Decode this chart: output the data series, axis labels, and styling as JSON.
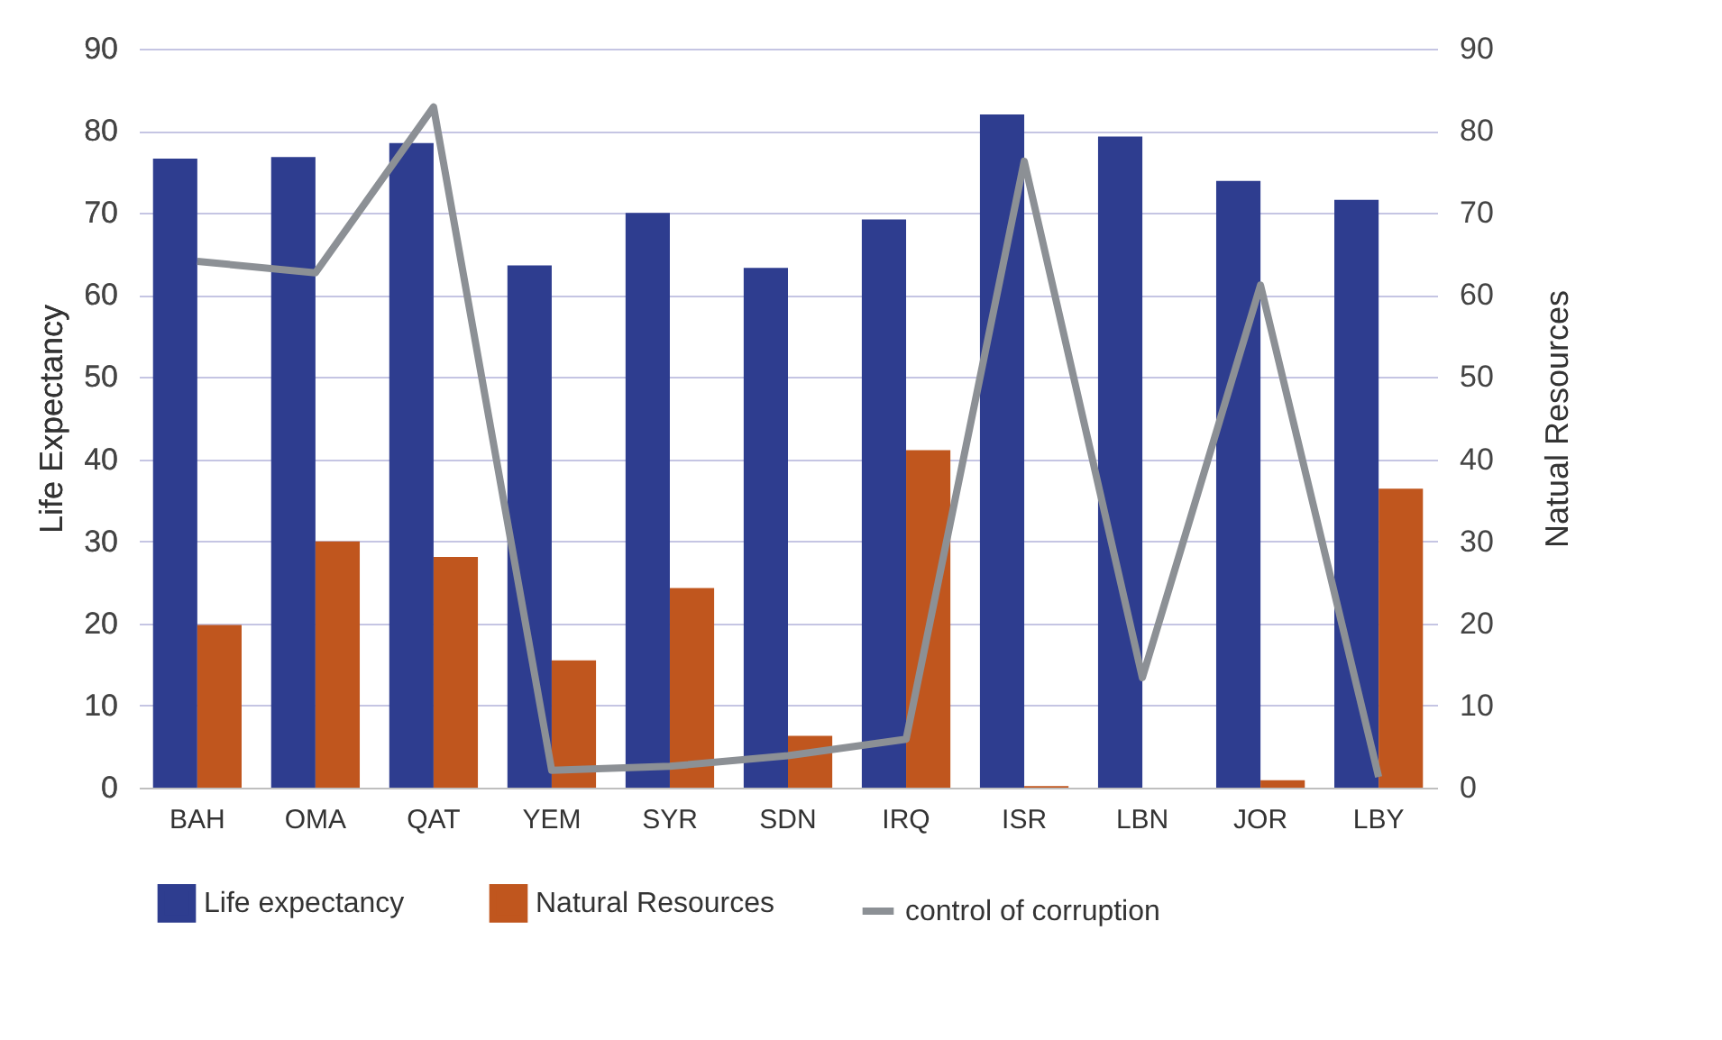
{
  "chart_data": {
    "type": "bar",
    "ylabel": "Life Expectancy",
    "y2label": "Natual Resources",
    "categories": [
      "BAH",
      "OMA",
      "QAT",
      "YEM",
      "SYR",
      "SDN",
      "IRQ",
      "ISR",
      "LBN",
      "JOR",
      "LBY"
    ],
    "series": [
      {
        "name": "Life expectancy",
        "color": "#2e3d8f",
        "values": [
          76.6,
          76.8,
          78.5,
          63.6,
          70.0,
          63.3,
          69.2,
          82.0,
          79.3,
          73.9,
          71.6
        ]
      },
      {
        "name": "Natural Resources",
        "axis": "y2",
        "color": "#c0561e",
        "values": [
          19.8,
          30.0,
          28.1,
          15.5,
          24.3,
          6.3,
          41.1,
          0.2,
          0,
          0.9,
          36.4
        ]
      },
      {
        "name": "control of corruption",
        "type": "line",
        "color": "#8c9095",
        "values": [
          64.1,
          62.7,
          82.9,
          2.1,
          2.6,
          3.9,
          5.9,
          76.3,
          13.4,
          61.2,
          1.3
        ]
      }
    ],
    "ylim": [
      0,
      90
    ],
    "yticks": [
      0,
      10,
      20,
      30,
      40,
      50,
      60,
      70,
      80,
      90
    ],
    "y2lim": [
      0,
      90
    ],
    "y2ticks": [
      0,
      10,
      20,
      30,
      40,
      50,
      60,
      70,
      80,
      90
    ],
    "grid": "y",
    "legend": "bottom"
  }
}
